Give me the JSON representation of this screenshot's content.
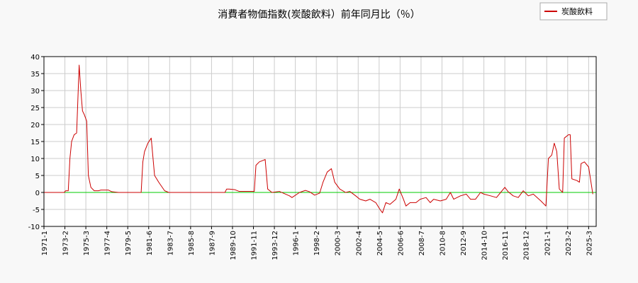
{
  "chart_data": {
    "type": "line",
    "title": "消費者物価指数(炭酸飲料）前年同月比（％）",
    "legend": {
      "label": "炭酸飲料",
      "position": "top-right"
    },
    "ylim": [
      -10,
      40
    ],
    "yticks": [
      -10,
      -5,
      0,
      5,
      10,
      15,
      20,
      25,
      30,
      35,
      40
    ],
    "grid": true,
    "xlim": [
      "1971-01",
      "2025-12"
    ],
    "xticks": [
      "1971-1",
      "1973-2",
      "1975-3",
      "1977-4",
      "1979-5",
      "1981-6",
      "1983-7",
      "1985-8",
      "1987-9",
      "1989-10",
      "1991-11",
      "1993-12",
      "1996-1",
      "1998-2",
      "2000-3",
      "2002-4",
      "2004-5",
      "2006-6",
      "2008-7",
      "2010-8",
      "2012-9",
      "2014-10",
      "2016-11",
      "2018-12",
      "2021-1",
      "2023-2",
      "2025-3"
    ],
    "series": [
      {
        "name": "炭酸飲料",
        "color": "#cc0000",
        "points": [
          [
            "1971-01",
            0
          ],
          [
            "1973-01",
            0
          ],
          [
            "1973-03",
            0.5
          ],
          [
            "1973-06",
            0.5
          ],
          [
            "1973-08",
            10
          ],
          [
            "1973-10",
            15
          ],
          [
            "1974-01",
            17
          ],
          [
            "1974-04",
            17.5
          ],
          [
            "1974-07",
            37.5
          ],
          [
            "1974-09",
            30
          ],
          [
            "1974-11",
            24
          ],
          [
            "1975-01",
            23
          ],
          [
            "1975-04",
            21
          ],
          [
            "1975-06",
            5
          ],
          [
            "1975-09",
            1.5
          ],
          [
            "1976-01",
            0.5
          ],
          [
            "1976-06",
            0.5
          ],
          [
            "1976-09",
            0.7
          ],
          [
            "1977-06",
            0.7
          ],
          [
            "1977-10",
            0.2
          ],
          [
            "1978-06",
            0
          ],
          [
            "1980-09",
            0
          ],
          [
            "1980-11",
            9
          ],
          [
            "1981-01",
            12
          ],
          [
            "1981-05",
            14.5
          ],
          [
            "1981-09",
            16
          ],
          [
            "1982-01",
            5
          ],
          [
            "1982-06",
            3
          ],
          [
            "1983-01",
            0.5
          ],
          [
            "1983-06",
            0
          ],
          [
            "1989-01",
            0
          ],
          [
            "1989-03",
            1
          ],
          [
            "1989-06",
            1
          ],
          [
            "1990-01",
            0.8
          ],
          [
            "1990-06",
            0.3
          ],
          [
            "1991-12",
            0.3
          ],
          [
            "1992-02",
            8
          ],
          [
            "1992-06",
            9
          ],
          [
            "1993-01",
            9.7
          ],
          [
            "1993-04",
            1
          ],
          [
            "1993-09",
            0
          ],
          [
            "1994-06",
            0.3
          ],
          [
            "1995-06",
            -1
          ],
          [
            "1995-09",
            -1.5
          ],
          [
            "1996-06",
            0
          ],
          [
            "1997-01",
            0.6
          ],
          [
            "1997-06",
            0.2
          ],
          [
            "1997-12",
            -0.8
          ],
          [
            "1998-06",
            -0.2
          ],
          [
            "1998-10",
            3
          ],
          [
            "1999-03",
            6
          ],
          [
            "1999-08",
            7
          ],
          [
            "1999-12",
            3
          ],
          [
            "2000-06",
            1
          ],
          [
            "2001-01",
            0
          ],
          [
            "2001-06",
            0.3
          ],
          [
            "2002-01",
            -1
          ],
          [
            "2002-06",
            -2
          ],
          [
            "2003-01",
            -2.5
          ],
          [
            "2003-06",
            -2
          ],
          [
            "2004-01",
            -3
          ],
          [
            "2004-06",
            -5
          ],
          [
            "2004-09",
            -6
          ],
          [
            "2005-01",
            -3
          ],
          [
            "2005-06",
            -3.5
          ],
          [
            "2006-01",
            -2
          ],
          [
            "2006-05",
            1
          ],
          [
            "2006-10",
            -2
          ],
          [
            "2007-01",
            -4
          ],
          [
            "2007-06",
            -3
          ],
          [
            "2008-01",
            -3
          ],
          [
            "2008-06",
            -2
          ],
          [
            "2009-01",
            -1.5
          ],
          [
            "2009-06",
            -3
          ],
          [
            "2009-10",
            -2
          ],
          [
            "2010-06",
            -2.5
          ],
          [
            "2011-01",
            -2
          ],
          [
            "2011-06",
            0
          ],
          [
            "2011-10",
            -2
          ],
          [
            "2012-06",
            -1
          ],
          [
            "2013-01",
            -0.5
          ],
          [
            "2013-06",
            -2
          ],
          [
            "2013-12",
            -2
          ],
          [
            "2014-06",
            0
          ],
          [
            "2014-10",
            -0.5
          ],
          [
            "2015-06",
            -1
          ],
          [
            "2016-01",
            -1.5
          ],
          [
            "2016-06",
            0
          ],
          [
            "2016-11",
            1.5
          ],
          [
            "2017-03",
            0.2
          ],
          [
            "2017-09",
            -1
          ],
          [
            "2018-03",
            -1.5
          ],
          [
            "2018-09",
            0.5
          ],
          [
            "2019-03",
            -1
          ],
          [
            "2019-09",
            -0.5
          ],
          [
            "2020-06",
            -2.5
          ],
          [
            "2020-12",
            -4
          ],
          [
            "2021-03",
            10
          ],
          [
            "2021-07",
            11
          ],
          [
            "2021-10",
            14.5
          ],
          [
            "2022-01",
            12
          ],
          [
            "2022-04",
            1
          ],
          [
            "2022-08",
            0
          ],
          [
            "2022-10",
            16
          ],
          [
            "2023-03",
            17
          ],
          [
            "2023-05",
            17
          ],
          [
            "2023-07",
            4
          ],
          [
            "2024-01",
            3.5
          ],
          [
            "2024-04",
            3
          ],
          [
            "2024-06",
            8.5
          ],
          [
            "2024-10",
            9
          ],
          [
            "2025-03",
            7.5
          ],
          [
            "2025-08",
            -0.5
          ]
        ]
      },
      {
        "name": "baseline",
        "color": "#00cc00",
        "points": [
          [
            "1971-01",
            0
          ],
          [
            "2025-12",
            0
          ]
        ]
      }
    ]
  }
}
